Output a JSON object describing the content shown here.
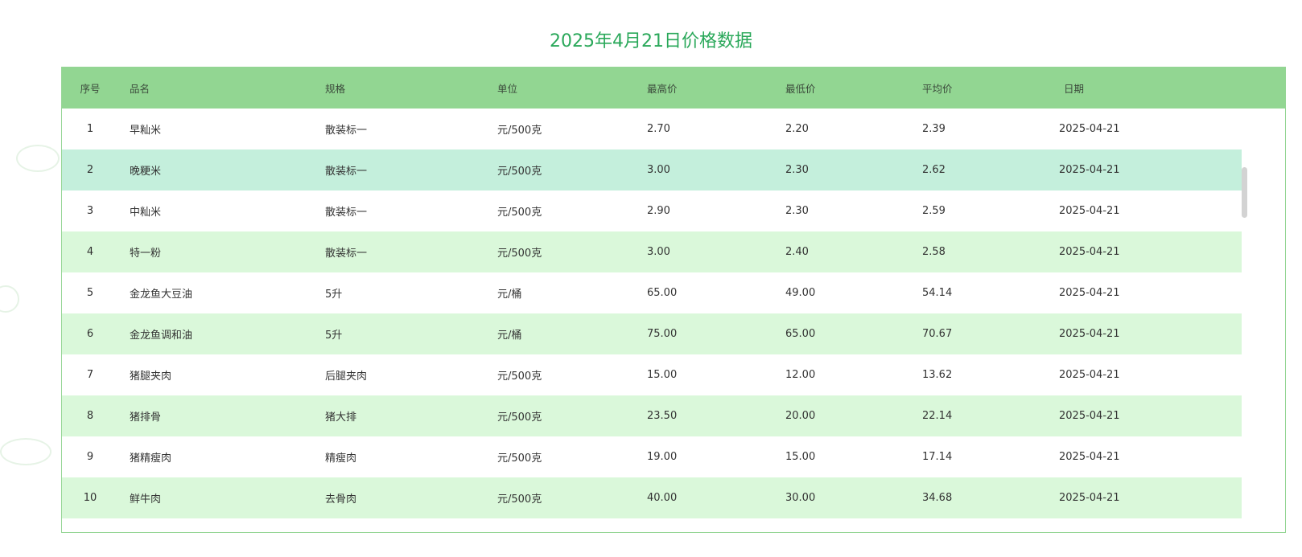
{
  "title": "2025年4月21日价格数据",
  "colors": {
    "title": "#2aa85a",
    "header_bg": "#92d692",
    "alt_row_bg": "#daf8da",
    "hover_row_bg": "#c4efdc",
    "border": "#94d594"
  },
  "table": {
    "headers": [
      "序号",
      "品名",
      "规格",
      "单位",
      "最高价",
      "最低价",
      "平均价",
      "日期"
    ],
    "rows": [
      [
        "1",
        "早籼米",
        "散装标一",
        "元/500克",
        "2.70",
        "2.20",
        "2.39",
        "2025-04-21"
      ],
      [
        "2",
        "晚粳米",
        "散装标一",
        "元/500克",
        "3.00",
        "2.30",
        "2.62",
        "2025-04-21"
      ],
      [
        "3",
        "中籼米",
        "散装标一",
        "元/500克",
        "2.90",
        "2.30",
        "2.59",
        "2025-04-21"
      ],
      [
        "4",
        "特一粉",
        "散装标一",
        "元/500克",
        "3.00",
        "2.40",
        "2.58",
        "2025-04-21"
      ],
      [
        "5",
        "金龙鱼大豆油",
        "5升",
        "元/桶",
        "65.00",
        "49.00",
        "54.14",
        "2025-04-21"
      ],
      [
        "6",
        "金龙鱼调和油",
        "5升",
        "元/桶",
        "75.00",
        "65.00",
        "70.67",
        "2025-04-21"
      ],
      [
        "7",
        "猪腿夹肉",
        "后腿夹肉",
        "元/500克",
        "15.00",
        "12.00",
        "13.62",
        "2025-04-21"
      ],
      [
        "8",
        "猪排骨",
        "猪大排",
        "元/500克",
        "23.50",
        "20.00",
        "22.14",
        "2025-04-21"
      ],
      [
        "9",
        "猪精瘦肉",
        "精瘦肉",
        "元/500克",
        "19.00",
        "15.00",
        "17.14",
        "2025-04-21"
      ],
      [
        "10",
        "鲜牛肉",
        "去骨肉",
        "元/500克",
        "40.00",
        "30.00",
        "34.68",
        "2025-04-21"
      ]
    ]
  }
}
